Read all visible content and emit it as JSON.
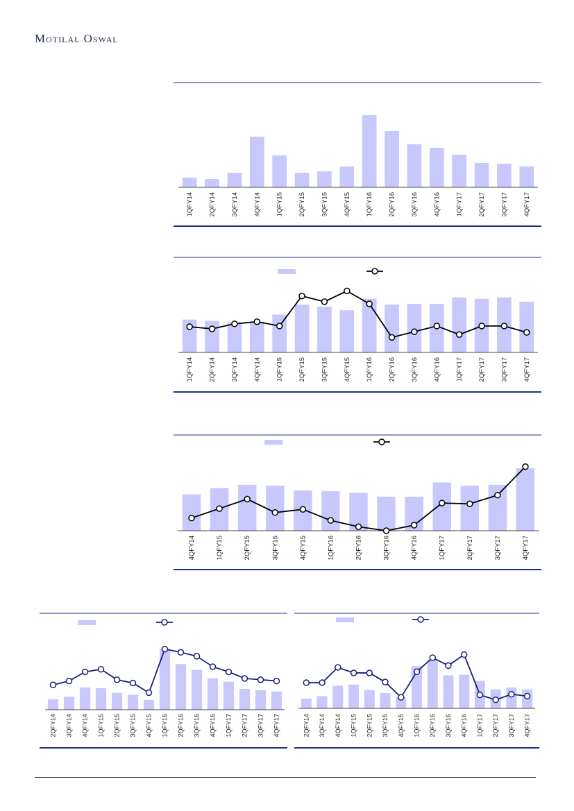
{
  "header": {
    "logo_text": "Motilal Oswal"
  },
  "colors": {
    "bar": "#c8c8fc",
    "rule": "#1f2f8c",
    "line": "#000000",
    "line_blue": "#1a1f78"
  },
  "chart_data": [
    {
      "type": "bar",
      "categories": [
        "1QFY14",
        "2QFY14",
        "3QFY14",
        "4QFY14",
        "1QFY15",
        "2QFY15",
        "3QFY15",
        "4QFY15",
        "1QFY16",
        "2QFY16",
        "3QFY16",
        "4QFY16",
        "1QFY17",
        "2QFY17",
        "3QFY17",
        "4QFY17"
      ],
      "values": [
        14,
        12,
        21,
        73,
        46,
        21,
        23,
        30,
        104,
        81,
        62,
        57,
        47,
        35,
        34,
        30
      ],
      "ylim": [
        0,
        110
      ]
    },
    {
      "type": "bar+line",
      "categories": [
        "1QFY14",
        "2QFY14",
        "3QFY14",
        "4QFY14",
        "1QFY15",
        "2QFY15",
        "3QFY15",
        "4QFY15",
        "1QFY16",
        "2QFY16",
        "3QFY16",
        "4QFY16",
        "1QFY17",
        "2QFY17",
        "3QFY17",
        "4QFY17"
      ],
      "series": [
        {
          "kind": "bar",
          "values": [
            46,
            44,
            42,
            43,
            53,
            67,
            64,
            59,
            75,
            67,
            68,
            68,
            77,
            75,
            77,
            71
          ]
        },
        {
          "kind": "line",
          "values": [
            36,
            33,
            40,
            43,
            37,
            79,
            71,
            86,
            68,
            21,
            29,
            37,
            25,
            37,
            37,
            28
          ]
        }
      ],
      "ylim": [
        0,
        100
      ]
    },
    {
      "type": "bar+line",
      "categories": [
        "4QFY14",
        "1QFY15",
        "2QFY15",
        "3QFY15",
        "4QFY15",
        "1QFY16",
        "2QFY16",
        "3QFY16",
        "4QFY16",
        "1QFY17",
        "2QFY17",
        "3QFY17",
        "4QFY17"
      ],
      "series": [
        {
          "kind": "bar",
          "values": [
            46,
            54,
            58,
            57,
            51,
            50,
            48,
            43,
            43,
            61,
            57,
            58,
            79
          ]
        },
        {
          "kind": "line",
          "values": [
            16,
            28,
            40,
            23,
            27,
            13,
            5,
            0,
            7,
            35,
            34,
            45,
            81
          ]
        }
      ],
      "ylim": [
        0,
        100
      ]
    },
    {
      "type": "bar+line",
      "categories": [
        "2QFY14",
        "3QFY14",
        "4QFY14",
        "1QFY15",
        "2QFY15",
        "3QFY15",
        "4QFY15",
        "1QFY16",
        "2QFY16",
        "3QFY16",
        "4QFY16",
        "1QFY17",
        "2QFY17",
        "3QFY17",
        "4QFY17"
      ],
      "series": [
        {
          "kind": "bar",
          "values": [
            16,
            20,
            34,
            33,
            26,
            23,
            15,
            93,
            70,
            61,
            48,
            43,
            32,
            30,
            28
          ]
        },
        {
          "kind": "line",
          "values": [
            38,
            44,
            58,
            62,
            46,
            41,
            26,
            93,
            88,
            82,
            66,
            58,
            48,
            46,
            44
          ]
        }
      ],
      "ylim": [
        0,
        100
      ]
    },
    {
      "type": "bar+line",
      "categories": [
        "2QFY14",
        "3QFY14",
        "4QFY14",
        "1QFY15",
        "2QFY15",
        "3QFY15",
        "4QFY15",
        "1QFY16",
        "2QFY16",
        "3QFY16",
        "4QFY16",
        "1QFY17",
        "2QFY17",
        "3QFY17",
        "4QFY17"
      ],
      "series": [
        {
          "kind": "bar",
          "values": [
            16,
            20,
            37,
            39,
            30,
            25,
            18,
            69,
            79,
            54,
            55,
            45,
            31,
            34,
            31
          ]
        },
        {
          "kind": "line",
          "values": [
            42,
            42,
            67,
            58,
            58,
            43,
            18,
            60,
            83,
            70,
            88,
            22,
            14,
            23,
            20
          ]
        }
      ],
      "ylim": [
        0,
        100
      ]
    }
  ]
}
